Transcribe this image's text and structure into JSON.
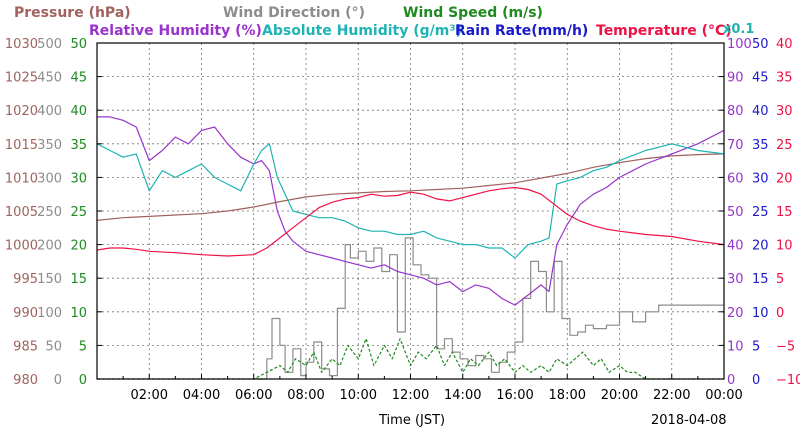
{
  "chart_data": {
    "type": "line",
    "date_label": "2018-04-08",
    "x_axis_label": "Time (JST)",
    "x_range_hours": [
      0,
      24
    ],
    "x_ticks": [
      "02:00",
      "04:00",
      "06:00",
      "08:00",
      "10:00",
      "12:00",
      "14:00",
      "16:00",
      "18:00",
      "20:00",
      "22:00",
      "00:00"
    ],
    "grid": true,
    "legend_rows": [
      [
        {
          "text": "Pressure (hPa)",
          "color": "#a0625e"
        },
        {
          "text": "Wind Direction (°)",
          "color": "#8c8c8c"
        },
        {
          "text": "Wind Speed (m/s)",
          "color": "#1f8a1f"
        }
      ],
      [
        {
          "text": "Relative Humidity (%)",
          "color": "#9933cc"
        },
        {
          "text": "Absolute Humidity (g/m³)",
          "color": "#1fb3b3"
        },
        {
          "text": "Rain Rate(mm/h)",
          "color": "#1a1acc"
        },
        {
          "text": "Temperature (°C)",
          "color": "#ee1144"
        }
      ]
    ],
    "right_scale_note": "x0.1",
    "axes": [
      {
        "name": "pressure",
        "side": "left",
        "color": "#a0625e",
        "range": [
          980,
          1030
        ],
        "ticks": [
          "980",
          "985",
          "990",
          "995",
          "1000",
          "1005",
          "1010",
          "1015",
          "1020",
          "1025",
          "1030"
        ]
      },
      {
        "name": "wind_direction",
        "side": "left",
        "color": "#8c8c8c",
        "range": [
          0,
          500
        ],
        "ticks": [
          "0",
          "50",
          "100",
          "150",
          "200",
          "250",
          "300",
          "350",
          "400",
          "450",
          "500"
        ]
      },
      {
        "name": "wind_speed",
        "side": "left",
        "color": "#1f8a1f",
        "range": [
          0,
          50
        ],
        "ticks": [
          "0",
          "5",
          "10",
          "15",
          "20",
          "25",
          "30",
          "35",
          "40",
          "45",
          "50"
        ]
      },
      {
        "name": "humidity",
        "side": "right",
        "color": "#9933cc",
        "range": [
          0,
          100
        ],
        "ticks": [
          "0",
          "10",
          "20",
          "30",
          "40",
          "50",
          "60",
          "70",
          "80",
          "90",
          "100"
        ]
      },
      {
        "name": "rain_rate",
        "side": "right",
        "color": "#1a1acc",
        "range": [
          0,
          50
        ],
        "ticks": [
          "0",
          "5",
          "10",
          "15",
          "20",
          "25",
          "30",
          "35",
          "40",
          "45",
          "50"
        ]
      },
      {
        "name": "temperature",
        "side": "right",
        "color": "#ee1144",
        "range": [
          -10,
          40
        ],
        "ticks": [
          "−10",
          "−5",
          "0",
          "5",
          "10",
          "15",
          "20",
          "25",
          "30",
          "35",
          "40"
        ]
      }
    ],
    "series": [
      {
        "name": "Pressure (hPa)",
        "axis": "pressure",
        "color": "#a0625e",
        "x": [
          0,
          1,
          2,
          3,
          4,
          5,
          6,
          7,
          8,
          9,
          10,
          11,
          12,
          13,
          14,
          15,
          16,
          17,
          18,
          19,
          20,
          21,
          22,
          23,
          24
        ],
        "y": [
          1003.6,
          1004.0,
          1004.2,
          1004.4,
          1004.6,
          1005.0,
          1005.6,
          1006.4,
          1007.1,
          1007.5,
          1007.7,
          1007.9,
          1008.0,
          1008.2,
          1008.4,
          1008.8,
          1009.2,
          1009.9,
          1010.6,
          1011.5,
          1012.2,
          1012.8,
          1013.2,
          1013.4,
          1013.5
        ]
      },
      {
        "name": "Wind Direction (°)",
        "axis": "wind_direction",
        "color": "#8c8c8c",
        "step": true,
        "x": [
          6.0,
          6.5,
          6.7,
          7.0,
          7.2,
          7.5,
          7.8,
          8.0,
          8.3,
          8.6,
          8.9,
          9.2,
          9.5,
          9.7,
          10.0,
          10.3,
          10.6,
          10.9,
          11.2,
          11.5,
          11.8,
          12.1,
          12.4,
          12.7,
          13.0,
          13.3,
          13.6,
          13.9,
          14.2,
          14.5,
          14.8,
          15.1,
          15.4,
          15.7,
          16.0,
          16.3,
          16.6,
          16.9,
          17.2,
          17.5,
          17.8,
          18.1,
          18.4,
          18.7,
          19.0,
          19.5,
          20.0,
          20.5,
          21.0,
          21.5,
          22.0,
          23.0,
          24.0
        ],
        "y": [
          0,
          30,
          90,
          50,
          10,
          45,
          5,
          25,
          55,
          15,
          5,
          105,
          200,
          180,
          190,
          175,
          195,
          160,
          185,
          70,
          210,
          170,
          155,
          150,
          45,
          60,
          40,
          30,
          20,
          35,
          30,
          10,
          25,
          40,
          55,
          120,
          175,
          160,
          100,
          175,
          90,
          65,
          70,
          80,
          75,
          80,
          100,
          85,
          100,
          110,
          110,
          110,
          110
        ]
      },
      {
        "name": "Wind Speed (m/s)",
        "axis": "wind_speed",
        "color": "#1f8a1f",
        "x": [
          0,
          6.0,
          6.5,
          7.0,
          7.3,
          7.6,
          8.0,
          8.3,
          8.6,
          9.0,
          9.3,
          9.6,
          10.0,
          10.3,
          10.6,
          11.0,
          11.3,
          11.6,
          12.0,
          12.3,
          12.6,
          13.0,
          13.3,
          13.6,
          14.0,
          14.3,
          14.6,
          15.0,
          15.3,
          15.6,
          16.0,
          16.3,
          16.6,
          17.0,
          17.3,
          17.6,
          18.0,
          18.3,
          18.6,
          19.0,
          19.3,
          19.6,
          20.0,
          20.3,
          20.6,
          21.0,
          22.0,
          23.0,
          24.0
        ],
        "y": [
          0,
          0,
          1,
          2,
          1,
          3,
          2,
          4,
          1,
          3,
          2,
          5,
          3,
          6,
          2,
          5,
          3,
          6,
          2,
          4,
          3,
          5,
          2,
          4,
          1,
          3,
          2,
          4,
          2,
          3,
          1,
          2,
          1,
          2,
          1,
          3,
          2,
          3,
          4,
          2,
          3,
          1,
          2,
          1,
          1,
          0,
          0,
          0,
          0
        ]
      },
      {
        "name": "Relative Humidity (%)",
        "axis": "humidity",
        "color": "#9933cc",
        "x": [
          0,
          0.5,
          1,
          1.5,
          2,
          2.5,
          3,
          3.5,
          4,
          4.5,
          5,
          5.5,
          6,
          6.3,
          6.6,
          6.9,
          7.2,
          7.5,
          8,
          8.5,
          9,
          9.5,
          10,
          10.5,
          11,
          11.5,
          12,
          12.5,
          13,
          13.5,
          14,
          14.5,
          15,
          15.5,
          16,
          16.5,
          17,
          17.3,
          17.6,
          18,
          18.5,
          19,
          19.5,
          20,
          21,
          22,
          23,
          24
        ],
        "y": [
          78,
          78,
          77,
          75,
          65,
          68,
          72,
          70,
          74,
          75,
          70,
          66,
          64,
          65,
          62,
          50,
          44,
          41,
          38,
          37,
          36,
          35,
          34,
          33,
          34,
          32,
          31,
          30,
          28,
          29,
          26,
          28,
          27,
          24,
          22,
          25,
          28,
          26,
          40,
          46,
          52,
          55,
          57,
          60,
          64,
          67,
          70,
          74
        ]
      },
      {
        "name": "Absolute Humidity (g/m³)",
        "axis": "humidity",
        "color": "#1fb3b3",
        "x": [
          0,
          0.5,
          1,
          1.5,
          2,
          2.5,
          3,
          3.5,
          4,
          4.5,
          5,
          5.5,
          6,
          6.3,
          6.6,
          6.9,
          7.2,
          7.5,
          8,
          8.5,
          9,
          9.5,
          10,
          10.5,
          11,
          11.5,
          12,
          12.5,
          13,
          13.5,
          14,
          14.5,
          15,
          15.5,
          16,
          16.5,
          17,
          17.3,
          17.6,
          18,
          18.5,
          19,
          19.5,
          20,
          21,
          22,
          23,
          24
        ],
        "y": [
          70,
          68,
          66,
          67,
          56,
          62,
          60,
          62,
          64,
          60,
          58,
          56,
          64,
          68,
          70,
          60,
          55,
          50,
          49,
          48,
          48,
          47,
          45,
          44,
          44,
          43,
          43,
          44,
          42,
          41,
          40,
          40,
          39,
          39,
          36,
          40,
          41,
          42,
          58,
          59,
          60,
          62,
          63,
          65,
          68,
          70,
          68,
          67
        ]
      },
      {
        "name": "Temperature (°C)",
        "axis": "temperature",
        "color": "#ee1144",
        "x": [
          0,
          0.5,
          1,
          1.5,
          2,
          3,
          4,
          5,
          6,
          6.5,
          7,
          7.5,
          8,
          8.5,
          9,
          9.5,
          10,
          10.5,
          11,
          11.5,
          12,
          12.5,
          13,
          13.5,
          14,
          14.5,
          15,
          15.5,
          16,
          16.5,
          17,
          17.5,
          18,
          18.5,
          19,
          19.5,
          20,
          21,
          22,
          23,
          24
        ],
        "y": [
          9.2,
          9.5,
          9.5,
          9.3,
          9.0,
          8.8,
          8.5,
          8.3,
          8.5,
          9.5,
          11.0,
          12.5,
          14.0,
          15.5,
          16.3,
          16.8,
          17.0,
          17.5,
          17.2,
          17.3,
          17.8,
          17.5,
          16.8,
          16.5,
          17.0,
          17.5,
          18.0,
          18.3,
          18.5,
          18.2,
          17.5,
          16.0,
          14.5,
          13.5,
          12.8,
          12.3,
          12.0,
          11.5,
          11.2,
          10.5,
          10.0
        ]
      }
    ]
  }
}
